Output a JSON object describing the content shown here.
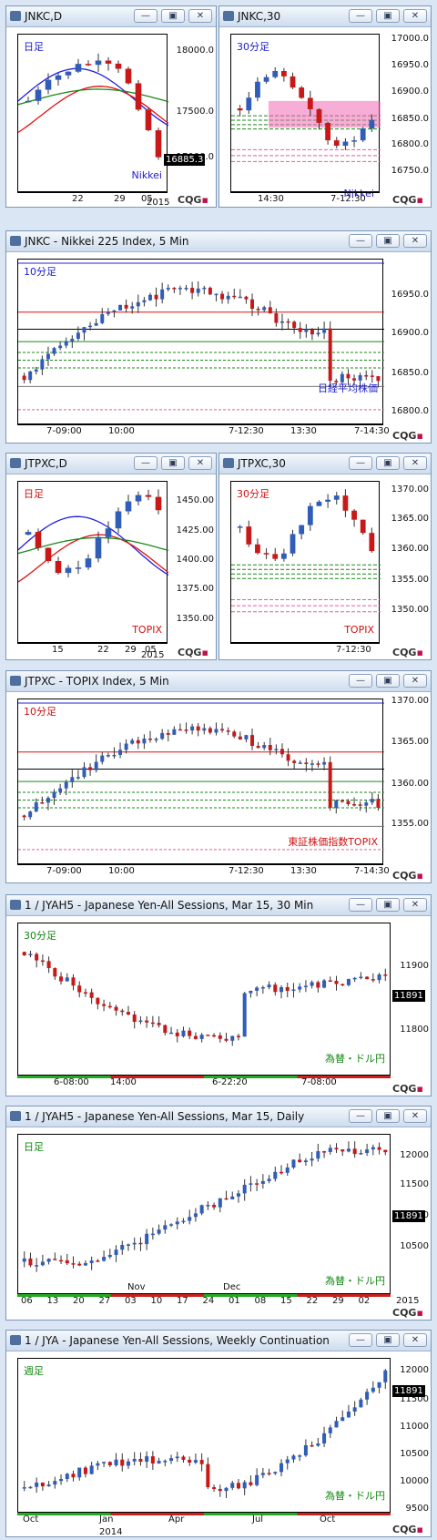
{
  "colors": {
    "up": "#2f5db8",
    "down": "#c81818",
    "ma_blue": "#2020e0",
    "ma_red": "#e01010",
    "ma_green": "#1a8a1a",
    "pink": "#e85aa0",
    "grey": "#777777",
    "black": "#000000"
  },
  "buttons": {
    "minimize": "—",
    "restore": "▣",
    "close": "✕"
  },
  "brand": {
    "text": "CQG"
  },
  "windows": [
    {
      "id": "w1",
      "title": "JNKC,D",
      "period": "日足",
      "tag": "Nikkei",
      "y_ticks": [
        "18000.0",
        "17500.0",
        "17000.0"
      ],
      "x_ticks": [
        "22",
        "29",
        "05"
      ],
      "year": "2015",
      "current": "16885.3"
    },
    {
      "id": "w2",
      "title": "JNKC,30",
      "period": "30分足",
      "tag": "Nikkei",
      "y_ticks": [
        "17000.0",
        "16950.0",
        "16900.0",
        "16850.0",
        "16800.0",
        "16750.0"
      ],
      "x_ticks": [
        "14:30",
        "7-12:30"
      ]
    },
    {
      "id": "w3",
      "title": "JNKC - Nikkei 225 Index, 5 Min",
      "period": "10分足",
      "tag": "日経平均株価",
      "y_ticks": [
        "16950.0",
        "16900.0",
        "16850.0",
        "16800.0"
      ],
      "x_ticks": [
        "7-09:00",
        "10:00",
        "7-12:30",
        "13:30",
        "7-14:30"
      ]
    },
    {
      "id": "w4",
      "title": "JTPXC,D",
      "period": "日足",
      "tag": "TOPIX",
      "y_ticks": [
        "1450.00",
        "1425.00",
        "1400.00",
        "1375.00",
        "1350.00"
      ],
      "x_ticks": [
        "15",
        "22",
        "29",
        "05"
      ],
      "year": "2015"
    },
    {
      "id": "w5",
      "title": "JTPXC,30",
      "period": "30分足",
      "tag": "TOPIX",
      "y_ticks": [
        "1370.00",
        "1365.00",
        "1360.00",
        "1355.00",
        "1350.00"
      ],
      "x_ticks": [
        "7-12:30"
      ]
    },
    {
      "id": "w6",
      "title": "JTPXC - TOPIX Index, 5 Min",
      "period": "10分足",
      "tag": "東証株価指数TOPIX",
      "y_ticks": [
        "1370.00",
        "1365.00",
        "1360.00",
        "1355.00"
      ],
      "x_ticks": [
        "7-09:00",
        "10:00",
        "7-12:30",
        "13:30",
        "7-14:30"
      ]
    },
    {
      "id": "w7",
      "title": "1 / JYAH5 - Japanese Yen-All Sessions, Mar 15, 30 Min",
      "period": "30分足",
      "tag": "為替・ドル円",
      "y_ticks": [
        "11900",
        "11800"
      ],
      "x_ticks": [
        "6-08:00",
        "14:00",
        "6-22:20",
        "7-08:00"
      ],
      "current": "11891"
    },
    {
      "id": "w8",
      "title": "1 / JYAH5 - Japanese Yen-All Sessions, Mar 15, Daily",
      "period": "日足",
      "tag": "為替・ドル円",
      "y_ticks": [
        "12000",
        "11500",
        "11000",
        "10500"
      ],
      "x_ticks": [
        "06",
        "13",
        "20",
        "27",
        "03",
        "10",
        "17",
        "24",
        "01",
        "08",
        "15",
        "22",
        "29",
        "02"
      ],
      "months": [
        "Nov",
        "Dec"
      ],
      "year": "2015",
      "current": "11891"
    },
    {
      "id": "w9",
      "title": "1 / JYA - Japanese Yen-All Sessions, Weekly Continuation",
      "period": "週足",
      "tag": "為替・ドル円",
      "y_ticks": [
        "12000",
        "11500",
        "11000",
        "10500",
        "10000",
        "9500"
      ],
      "x_ticks": [
        "Oct",
        "Jan",
        "Apr",
        "Jul",
        "Oct"
      ],
      "year": "2014",
      "current": "11891"
    }
  ]
}
